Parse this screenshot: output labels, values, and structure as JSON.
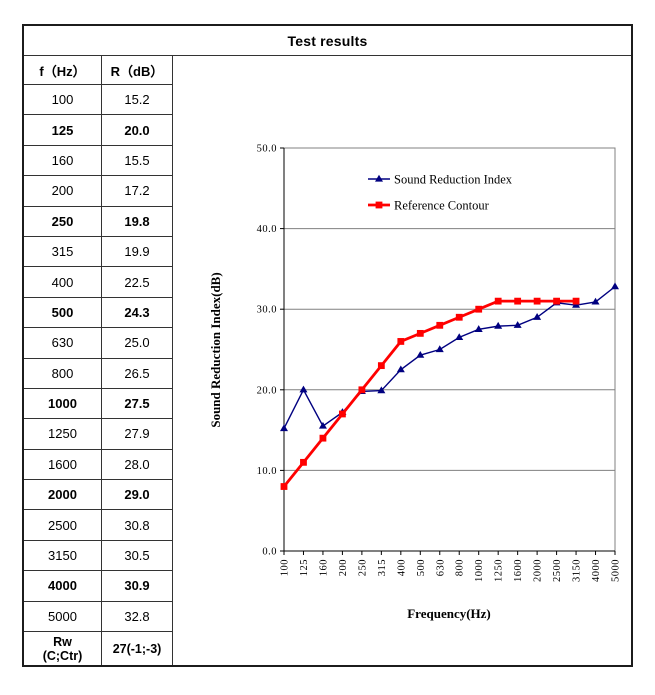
{
  "page": {
    "title": "Test results"
  },
  "table": {
    "headers": [
      "f（Hz）",
      "R（dB）"
    ],
    "rows": [
      {
        "f": "100",
        "r": "15.2",
        "bold": false
      },
      {
        "f": "125",
        "r": "20.0",
        "bold": true
      },
      {
        "f": "160",
        "r": "15.5",
        "bold": false
      },
      {
        "f": "200",
        "r": "17.2",
        "bold": false
      },
      {
        "f": "250",
        "r": "19.8",
        "bold": true
      },
      {
        "f": "315",
        "r": "19.9",
        "bold": false
      },
      {
        "f": "400",
        "r": "22.5",
        "bold": false
      },
      {
        "f": "500",
        "r": "24.3",
        "bold": true
      },
      {
        "f": "630",
        "r": "25.0",
        "bold": false
      },
      {
        "f": "800",
        "r": "26.5",
        "bold": false
      },
      {
        "f": "1000",
        "r": "27.5",
        "bold": true
      },
      {
        "f": "1250",
        "r": "27.9",
        "bold": false
      },
      {
        "f": "1600",
        "r": "28.0",
        "bold": false
      },
      {
        "f": "2000",
        "r": "29.0",
        "bold": true
      },
      {
        "f": "2500",
        "r": "30.8",
        "bold": false
      },
      {
        "f": "3150",
        "r": "30.5",
        "bold": false
      },
      {
        "f": "4000",
        "r": "30.9",
        "bold": true
      },
      {
        "f": "5000",
        "r": "32.8",
        "bold": false
      }
    ],
    "footer": {
      "label_line1": "Rw",
      "label_line2": "(C;Ctr)",
      "value": "27(-1;-3)"
    }
  },
  "chart_data": {
    "type": "line",
    "title": "",
    "xlabel": "Frequency(Hz)",
    "ylabel": "Sound Reduction Index(dB)",
    "categories": [
      "100",
      "125",
      "160",
      "200",
      "250",
      "315",
      "400",
      "500",
      "630",
      "800",
      "1000",
      "1250",
      "1600",
      "2000",
      "2500",
      "3150",
      "4000",
      "5000"
    ],
    "series": [
      {
        "name": "Sound Reduction Index",
        "color": "#000080",
        "marker": "triangle-marker-icon",
        "values": [
          15.2,
          20.0,
          15.5,
          17.2,
          19.8,
          19.9,
          22.5,
          24.3,
          25.0,
          26.5,
          27.5,
          27.9,
          28.0,
          29.0,
          30.8,
          30.5,
          30.9,
          32.8
        ]
      },
      {
        "name": "Reference Contour",
        "color": "#FF0000",
        "marker": "square-marker-icon",
        "values": [
          8,
          11,
          14,
          17,
          20,
          23,
          26,
          27,
          28,
          29,
          30,
          31,
          31,
          31,
          31,
          31
        ]
      }
    ],
    "ylim": [
      0,
      50
    ],
    "yticks": [
      0,
      10,
      20,
      30,
      40,
      50
    ],
    "ytick_labels": [
      "0.0",
      "10.0",
      "20.0",
      "30.0",
      "40.0",
      "50.0"
    ],
    "grid": true,
    "legend_position": "inside-top-center",
    "colors": {
      "gridline": "#808080",
      "axis": "#000000",
      "plot_border": "#808080"
    }
  }
}
